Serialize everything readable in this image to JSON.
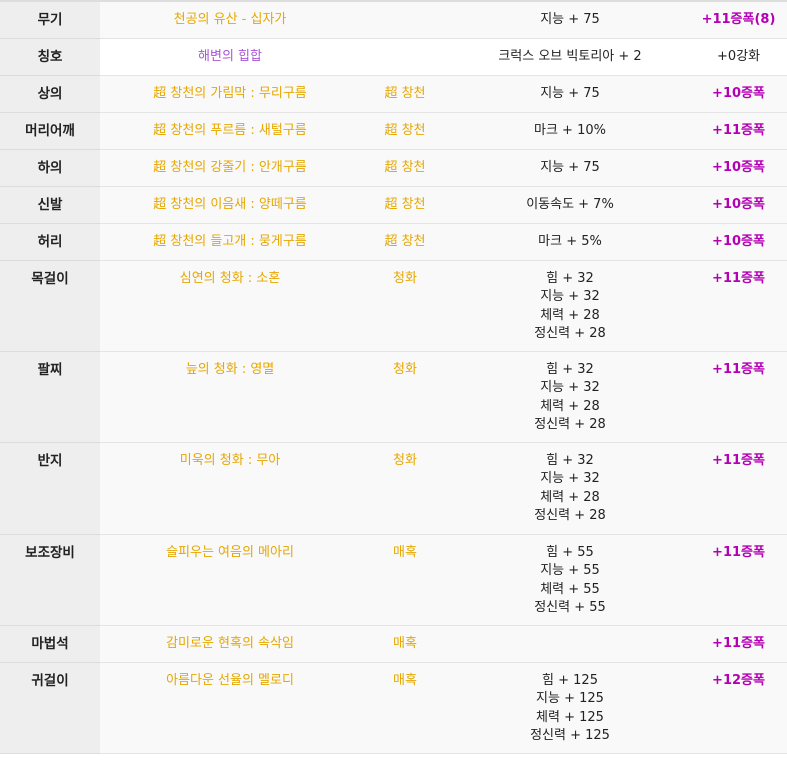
{
  "rows": [
    {
      "slot": "무기",
      "name": "천공의 유산 - 십자가",
      "set": "",
      "stats": [
        "지능 + 75"
      ],
      "upgrade": "+11증폭(8)",
      "height": 36,
      "shade": true,
      "name_color": "gold",
      "upgrade_color": "mag"
    },
    {
      "slot": "칭호",
      "name": "해변의 힙합",
      "set": "",
      "stats": [
        "크럭스 오브 빅토리아 + 2"
      ],
      "upgrade": "+0강화",
      "height": 37,
      "shade": false,
      "name_color": "purple",
      "upgrade_color": "dark"
    },
    {
      "slot": "상의",
      "name": "超 창천의 가림막 : 무리구름",
      "set": "超 창천",
      "stats": [
        "지능 + 75"
      ],
      "upgrade": "+10증폭",
      "height": 37,
      "shade": true,
      "name_color": "gold",
      "upgrade_color": "mag"
    },
    {
      "slot": "머리어깨",
      "name": "超 창천의 푸르름 : 새털구름",
      "set": "超 창천",
      "stats": [
        "마크 + 10%"
      ],
      "upgrade": "+11증폭",
      "height": 37,
      "shade": true,
      "name_color": "gold",
      "upgrade_color": "mag"
    },
    {
      "slot": "하의",
      "name": "超 창천의 강줄기 : 안개구름",
      "set": "超 창천",
      "stats": [
        "지능 + 75"
      ],
      "upgrade": "+10증폭",
      "height": 37,
      "shade": true,
      "name_color": "gold",
      "upgrade_color": "mag"
    },
    {
      "slot": "신발",
      "name": "超 창천의 이음새 : 양떼구름",
      "set": "超 창천",
      "stats": [
        "이동속도 + 7%"
      ],
      "upgrade": "+10증폭",
      "height": 37,
      "shade": true,
      "name_color": "gold",
      "upgrade_color": "mag"
    },
    {
      "slot": "허리",
      "name": "超 창천의 들고개 : 뭉게구름",
      "set": "超 창천",
      "stats": [
        "마크 + 5%"
      ],
      "upgrade": "+10증폭",
      "height": 37,
      "shade": true,
      "name_color": "gold",
      "upgrade_color": "mag"
    },
    {
      "slot": "목걸이",
      "name": "심연의 청화 : 소혼",
      "set": "청화",
      "stats": [
        "힘 + 32",
        "지능 + 32",
        "체력 + 28",
        "정신력 + 28"
      ],
      "upgrade": "+11증폭",
      "height": 91,
      "shade": true,
      "name_color": "gold",
      "upgrade_color": "mag"
    },
    {
      "slot": "팔찌",
      "name": "늪의 청화 : 영멸",
      "set": "청화",
      "stats": [
        "힘 + 32",
        "지능 + 32",
        "체력 + 28",
        "정신력 + 28"
      ],
      "upgrade": "+11증폭",
      "height": 91,
      "shade": true,
      "name_color": "gold",
      "upgrade_color": "mag"
    },
    {
      "slot": "반지",
      "name": "미욱의 청화 : 무아",
      "set": "청화",
      "stats": [
        "힘 + 32",
        "지능 + 32",
        "체력 + 28",
        "정신력 + 28"
      ],
      "upgrade": "+11증폭",
      "height": 92,
      "shade": true,
      "name_color": "gold",
      "upgrade_color": "mag"
    },
    {
      "slot": "보조장비",
      "name": "슬피우는 여음의 메아리",
      "set": "매혹",
      "stats": [
        "힘 + 55",
        "지능 + 55",
        "체력 + 55",
        "정신력 + 55"
      ],
      "upgrade": "+11증폭",
      "height": 91,
      "shade": true,
      "name_color": "gold",
      "upgrade_color": "mag"
    },
    {
      "slot": "마법석",
      "name": "감미로운 현혹의 속삭임",
      "set": "매혹",
      "stats": [],
      "upgrade": "+11증폭",
      "height": 37,
      "shade": true,
      "name_color": "gold",
      "upgrade_color": "mag"
    },
    {
      "slot": "귀걸이",
      "name": "아름다운 선율의 멜로디",
      "set": "매혹",
      "stats": [
        "힘 + 125",
        "지능 + 125",
        "체력 + 125",
        "정신력 + 125"
      ],
      "upgrade": "+12증폭",
      "height": 91,
      "shade": true,
      "name_color": "gold",
      "upgrade_color": "mag"
    }
  ]
}
